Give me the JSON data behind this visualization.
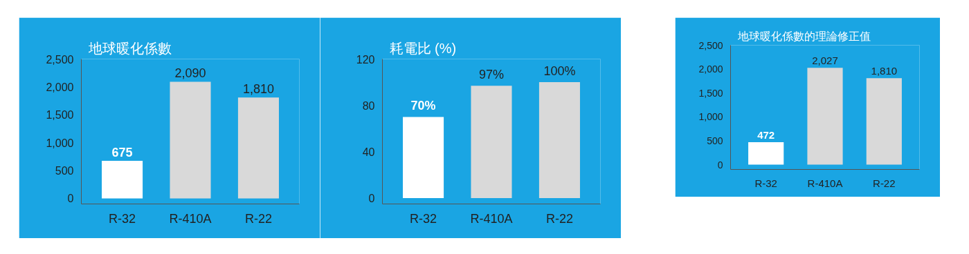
{
  "chart_data": [
    {
      "type": "bar",
      "title": "地球暖化係數",
      "categories": [
        "R-32",
        "R-410A",
        "R-22"
      ],
      "values": [
        675,
        2090,
        1810
      ],
      "colors": [
        "#ffffff",
        "#d9d9d9",
        "#d9d9d9"
      ],
      "value_labels": [
        "675",
        "2,090",
        "1,810"
      ],
      "ylim": [
        -100,
        2500
      ],
      "yticks": [
        0,
        {
          "value": 500,
          "label": "500"
        },
        {
          "value": 1000,
          "label": "1,000"
        },
        {
          "value": 1500,
          "label": "1,500"
        },
        {
          "value": 2000,
          "label": "2,000"
        },
        {
          "value": 2500,
          "label": "2,500"
        }
      ],
      "grid": false
    },
    {
      "type": "bar",
      "title": "耗電比 (%)",
      "categories": [
        "R-32",
        "R-410A",
        "R-22"
      ],
      "values": [
        70,
        97,
        100
      ],
      "colors": [
        "#ffffff",
        "#d9d9d9",
        "#d9d9d9"
      ],
      "value_labels": [
        "70%",
        "97%",
        "100%"
      ],
      "ylim": [
        -5,
        120
      ],
      "yticks": [
        0,
        40,
        80,
        120
      ],
      "grid": false
    },
    {
      "type": "bar",
      "title": "地球暖化係數的理論修正值",
      "categories": [
        "R-32",
        "R-410A",
        "R-22"
      ],
      "values": [
        472,
        2027,
        1810
      ],
      "colors": [
        "#ffffff",
        "#d9d9d9",
        "#d9d9d9"
      ],
      "value_labels": [
        "472",
        "2,027",
        "1,810"
      ],
      "ylim": [
        -100,
        2500
      ],
      "yticks": [
        0,
        {
          "value": 500,
          "label": "500"
        },
        {
          "value": 1000,
          "label": "1,000"
        },
        {
          "value": 1500,
          "label": "1,500"
        },
        {
          "value": 2000,
          "label": "2,000"
        },
        {
          "value": 2500,
          "label": "2,500"
        }
      ],
      "grid": false
    }
  ]
}
